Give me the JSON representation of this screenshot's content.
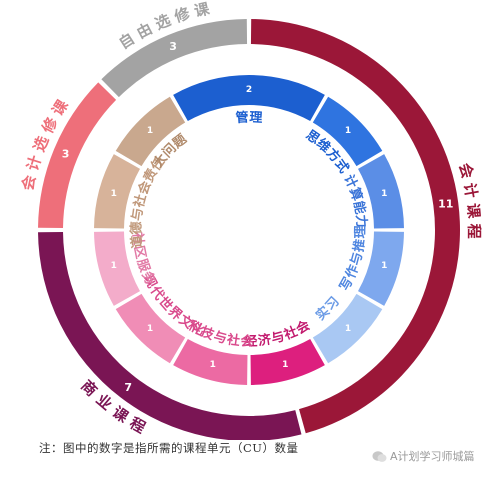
{
  "chart_data": [
    {
      "type": "pie",
      "ring": "outer",
      "slices": [
        {
          "label": "会计课程",
          "value": 11,
          "color": "#9b1738"
        },
        {
          "label": "商业课程",
          "value": 7,
          "color": "#7a1554"
        },
        {
          "label": "会计选修课",
          "value": 3,
          "color": "#ee6f7a"
        },
        {
          "label": "自由选修课",
          "value": 3,
          "color": "#a3a3a3"
        }
      ]
    },
    {
      "type": "pie",
      "ring": "inner",
      "slices": [
        {
          "label": "管理",
          "value": 2,
          "color": "#1c5fd0"
        },
        {
          "label": "思维方式",
          "value": 1,
          "color": "#2f74e0"
        },
        {
          "label": "计算能力",
          "value": 1,
          "color": "#5b8ee6"
        },
        {
          "label": "写作与推理",
          "value": 1,
          "color": "#7ea8ee"
        },
        {
          "label": "实习",
          "value": 1,
          "color": "#a9c8f3"
        },
        {
          "label": "经济与社会",
          "value": 1,
          "color": "#dd1f7e"
        },
        {
          "label": "科技与社会",
          "value": 1,
          "color": "#ec6aa3"
        },
        {
          "label": "现代世界文化",
          "value": 1,
          "color": "#f08db6"
        },
        {
          "label": "社区服务",
          "value": 1,
          "color": "#f3acca"
        },
        {
          "label": "道德与社会责任",
          "value": 1,
          "color": "#d7b39a"
        },
        {
          "label": "大问题",
          "value": 1,
          "color": "#c9a88e"
        }
      ]
    }
  ],
  "note": "注：图中的数字是指所需的课程单元（CU）数量",
  "watermark": "A计划学习师城篇"
}
